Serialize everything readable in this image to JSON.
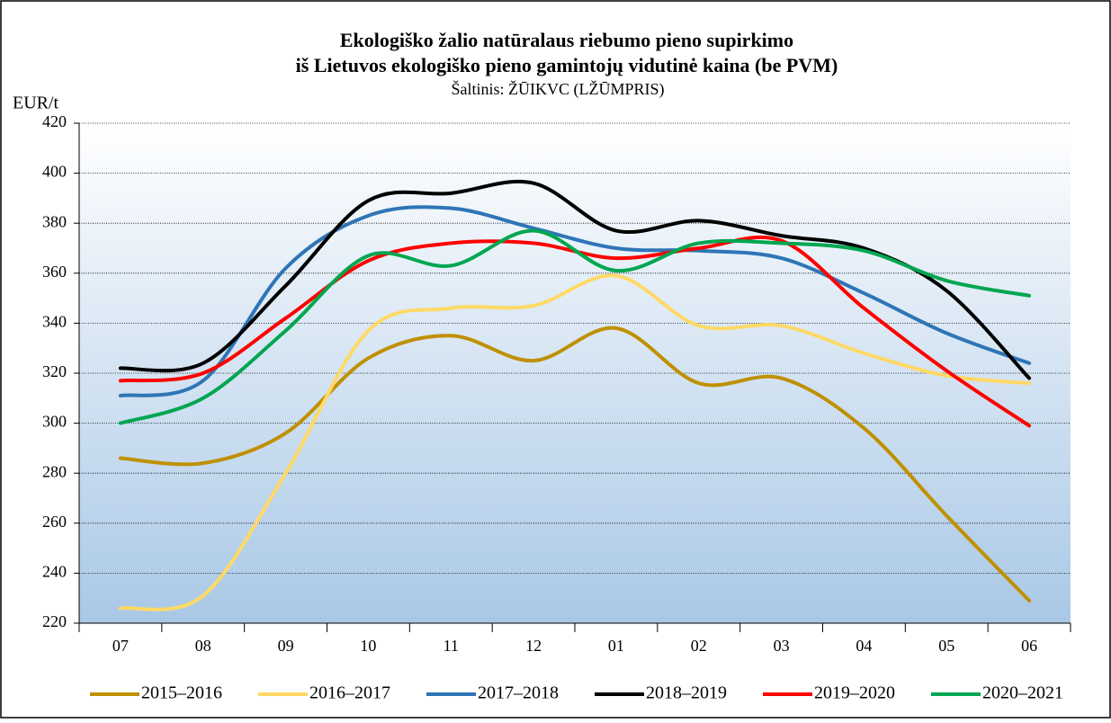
{
  "chart_data": {
    "type": "line",
    "title": [
      "Ekologiško žalio natūralaus riebumo pieno supirkimo",
      "iš Lietuvos ekologiško pieno gamintojų vidutinė kaina (be PVM)"
    ],
    "subtitle": "Šaltinis: ŽŪIKVC (LŽŪMPRIS)",
    "y_label": "EUR/t",
    "categories": [
      "07",
      "08",
      "09",
      "10",
      "11",
      "12",
      "01",
      "02",
      "03",
      "04",
      "05",
      "06"
    ],
    "ylim": [
      220,
      420
    ],
    "yticks": [
      220,
      240,
      260,
      280,
      300,
      320,
      340,
      360,
      380,
      400,
      420
    ],
    "grid": true,
    "legend": "bottom",
    "series": [
      {
        "name": "2015–2016",
        "color": "#bf9000",
        "values": [
          286,
          284,
          296,
          326,
          335,
          325,
          338,
          316,
          318,
          298,
          263,
          229
        ]
      },
      {
        "name": "2016–2017",
        "color": "#ffd966",
        "values": [
          226,
          231,
          280,
          337,
          346,
          347,
          359,
          339,
          339,
          328,
          319,
          316
        ]
      },
      {
        "name": "2017–2018",
        "color": "#2e75b6",
        "values": [
          311,
          317,
          362,
          383,
          386,
          378,
          370,
          369,
          366,
          352,
          336,
          324
        ]
      },
      {
        "name": "2018–2019",
        "color": "#000000",
        "values": [
          322,
          324,
          355,
          389,
          392,
          396,
          377,
          381,
          375,
          370,
          353,
          318
        ]
      },
      {
        "name": "2019–2020",
        "color": "#ff0000",
        "values": [
          317,
          320,
          342,
          365,
          372,
          372,
          366,
          370,
          373,
          346,
          321,
          299
        ]
      },
      {
        "name": "2020–2021",
        "color": "#00a650",
        "values": [
          300,
          310,
          337,
          367,
          363,
          377,
          361,
          372,
          372,
          369,
          357,
          351
        ]
      }
    ]
  }
}
